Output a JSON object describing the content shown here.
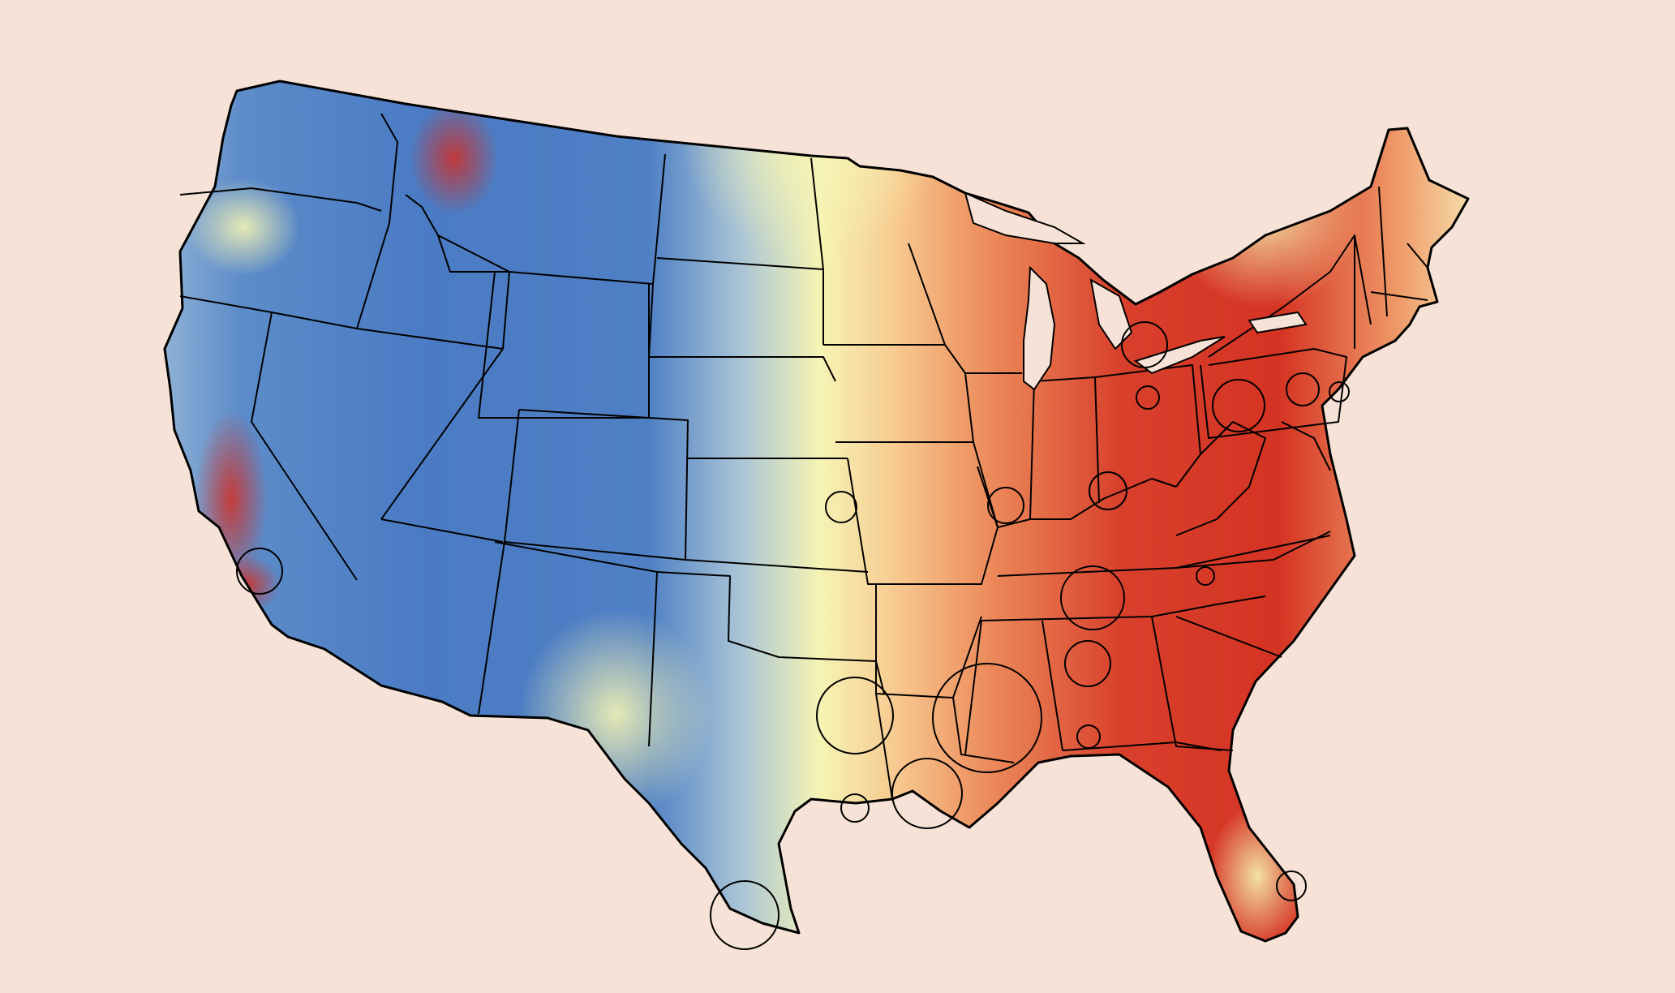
{
  "map": {
    "type": "choropleth",
    "region": "contiguous-united-states",
    "background_color": "#f6e2d6",
    "color_scale": [
      "#4a7bc4",
      "#8fb2d6",
      "#f6f4b4",
      "#f4b57e",
      "#e05a3a",
      "#d42d22"
    ],
    "no_data_color": "#d9dde6",
    "boundary_color": "#000000",
    "legend": "none",
    "grid": false,
    "title": "",
    "marker_shape": "open-circle",
    "marker_color": "#000000",
    "marker_count": 22
  }
}
